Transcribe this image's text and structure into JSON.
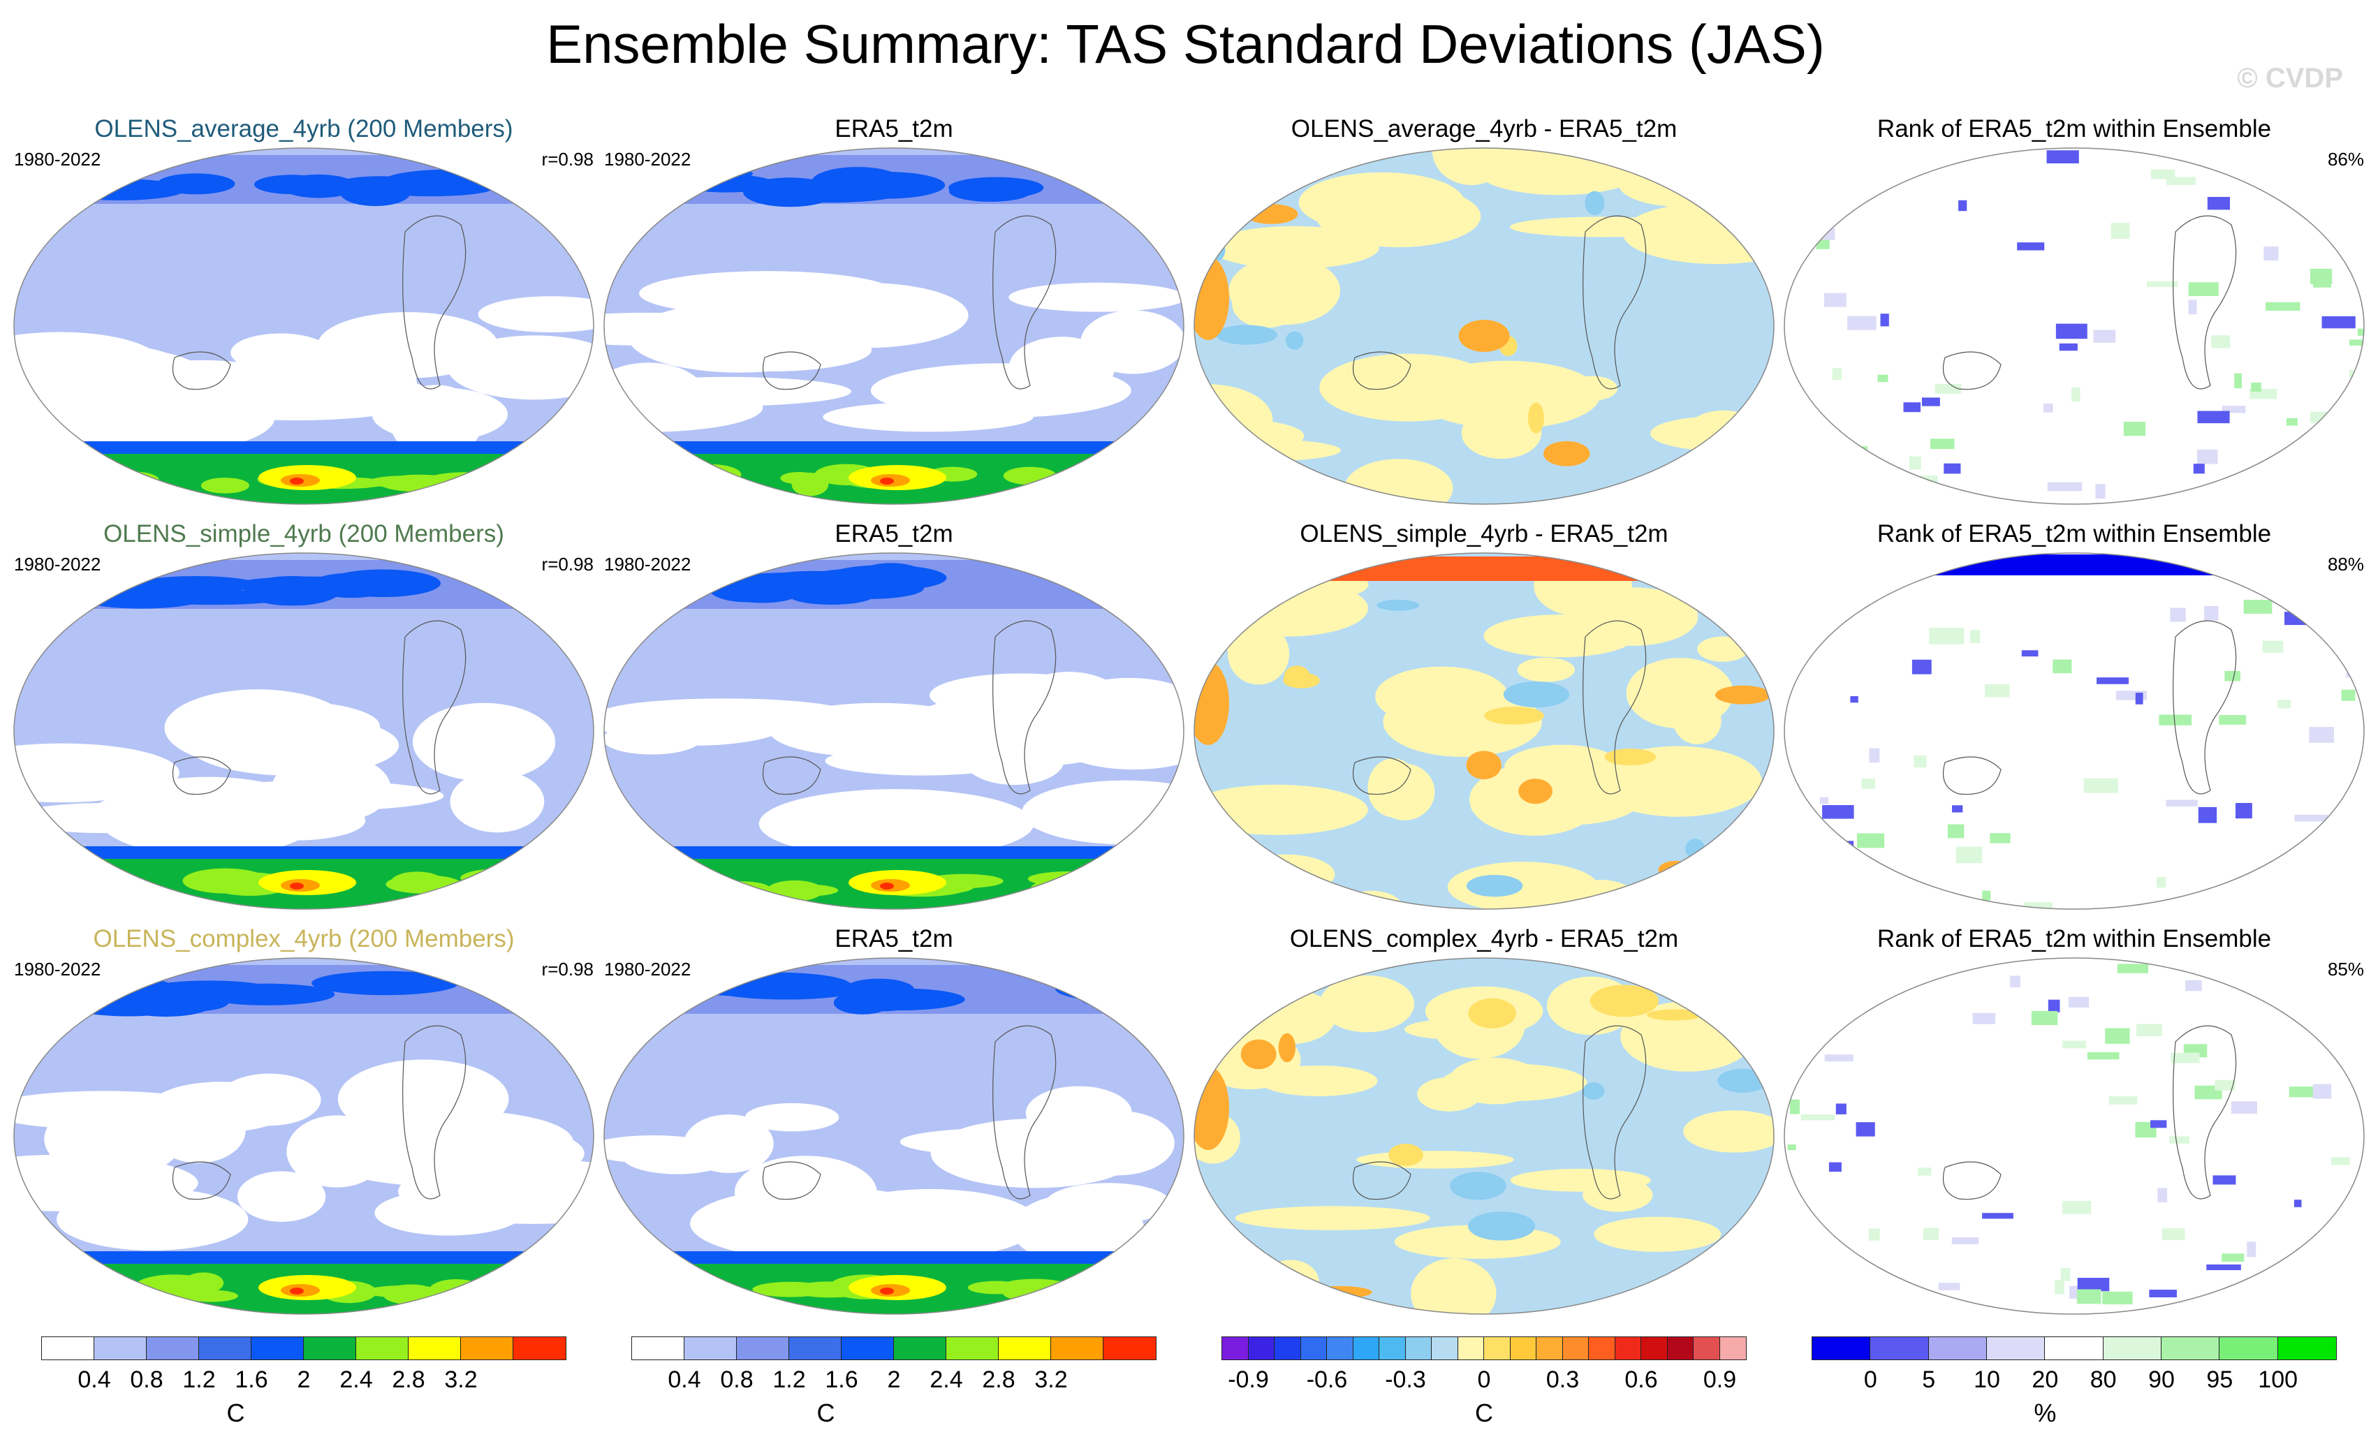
{
  "title": "Ensemble Summary: TAS Standard Deviations (JAS)",
  "watermark": "© CVDP",
  "chart_data": [
    {
      "type": "heatmap",
      "title": "OLENS_average_4yrb (200 Members)",
      "title_color": "#1f5b7a",
      "period": "1980-2022",
      "stat": "r=0.98",
      "field": "sd"
    },
    {
      "type": "heatmap",
      "title": "ERA5_t2m",
      "title_color": "#000000",
      "period": "1980-2022",
      "stat": "",
      "field": "sd"
    },
    {
      "type": "heatmap",
      "title": "OLENS_average_4yrb - ERA5_t2m",
      "title_color": "#000000",
      "period": "",
      "stat": "",
      "field": "diff"
    },
    {
      "type": "heatmap",
      "title": "Rank of ERA5_t2m within Ensemble",
      "title_color": "#000000",
      "period": "",
      "stat": "86%",
      "field": "rank"
    },
    {
      "type": "heatmap",
      "title": "OLENS_simple_4yrb (200 Members)",
      "title_color": "#4f7a4f",
      "period": "1980-2022",
      "stat": "r=0.98",
      "field": "sd"
    },
    {
      "type": "heatmap",
      "title": "ERA5_t2m",
      "title_color": "#000000",
      "period": "1980-2022",
      "stat": "",
      "field": "sd"
    },
    {
      "type": "heatmap",
      "title": "OLENS_simple_4yrb - ERA5_t2m",
      "title_color": "#000000",
      "period": "",
      "stat": "",
      "field": "diff"
    },
    {
      "type": "heatmap",
      "title": "Rank of ERA5_t2m within Ensemble",
      "title_color": "#000000",
      "period": "",
      "stat": "88%",
      "field": "rank"
    },
    {
      "type": "heatmap",
      "title": "OLENS_complex_4yrb (200 Members)",
      "title_color": "#c8b45a",
      "period": "1980-2022",
      "stat": "r=0.98",
      "field": "sd"
    },
    {
      "type": "heatmap",
      "title": "ERA5_t2m",
      "title_color": "#000000",
      "period": "1980-2022",
      "stat": "",
      "field": "sd"
    },
    {
      "type": "heatmap",
      "title": "OLENS_complex_4yrb - ERA5_t2m",
      "title_color": "#000000",
      "period": "",
      "stat": "",
      "field": "diff"
    },
    {
      "type": "heatmap",
      "title": "Rank of ERA5_t2m within Ensemble",
      "title_color": "#000000",
      "period": "",
      "stat": "85%",
      "field": "rank"
    }
  ],
  "colorbars": [
    {
      "id": "sd-1",
      "unit": "C",
      "colors": [
        "#ffffff",
        "#b4c3f5",
        "#8296ee",
        "#3c6eea",
        "#0a58f5",
        "#0ab43c",
        "#96f01e",
        "#ffff00",
        "#ffa000",
        "#ff2d00"
      ],
      "labels": [
        "0.4",
        "0.8",
        "1.2",
        "1.6",
        "2",
        "2.4",
        "2.8",
        "3.2"
      ]
    },
    {
      "id": "sd-2",
      "unit": "C",
      "colors": [
        "#ffffff",
        "#b4c3f5",
        "#8296ee",
        "#3c6eea",
        "#0a58f5",
        "#0ab43c",
        "#96f01e",
        "#ffff00",
        "#ffa000",
        "#ff2d00"
      ],
      "labels": [
        "0.4",
        "0.8",
        "1.2",
        "1.6",
        "2",
        "2.4",
        "2.8",
        "3.2"
      ]
    },
    {
      "id": "diff",
      "unit": "C",
      "colors": [
        "#7a1de0",
        "#3b23e6",
        "#1e3ff0",
        "#2f6cf2",
        "#3f86f2",
        "#2ea8f6",
        "#4cbaf0",
        "#8ccdf0",
        "#b7dcf2",
        "#fff7b0",
        "#ffe066",
        "#ffc93a",
        "#ffad32",
        "#ff8c2a",
        "#ff5e1f",
        "#f02a1a",
        "#d10f0f",
        "#b2081a",
        "#e35050",
        "#f7aaaa"
      ],
      "labels": [
        "-0.9",
        "-0.6",
        "-0.3",
        "0",
        "0.3",
        "0.6",
        "0.9"
      ]
    },
    {
      "id": "rank",
      "unit": "%",
      "colors": [
        "#0000f0",
        "#5a5af0",
        "#aaaaf2",
        "#dcdcf8",
        "#ffffff",
        "#dcf8dc",
        "#aaf2aa",
        "#78f078",
        "#00e600"
      ],
      "labels": [
        "0",
        "5",
        "10",
        "20",
        "80",
        "90",
        "95",
        "100"
      ]
    }
  ],
  "field_colors": {
    "sd": {
      "low": "#ffffff",
      "mid": "#b4c3f5",
      "mid2": "#8296ee",
      "high": "#3c6eea",
      "deep": "#0a58f5",
      "green": "#0ab43c",
      "lime": "#96f01e",
      "yellow": "#ffff00",
      "orange": "#ffa000",
      "red": "#ff2d00"
    },
    "diff": {
      "neg": "#b7dcf2",
      "neg2": "#8ccdf0",
      "pos": "#fff7b0",
      "pos2": "#ffe066",
      "pos3": "#ffad32",
      "pos4": "#ff5e1f"
    },
    "rank": {
      "blue": "#5a5af0",
      "lblue": "#dcdcf8",
      "green": "#aaf2aa",
      "lgreen": "#dcf8dc"
    }
  }
}
